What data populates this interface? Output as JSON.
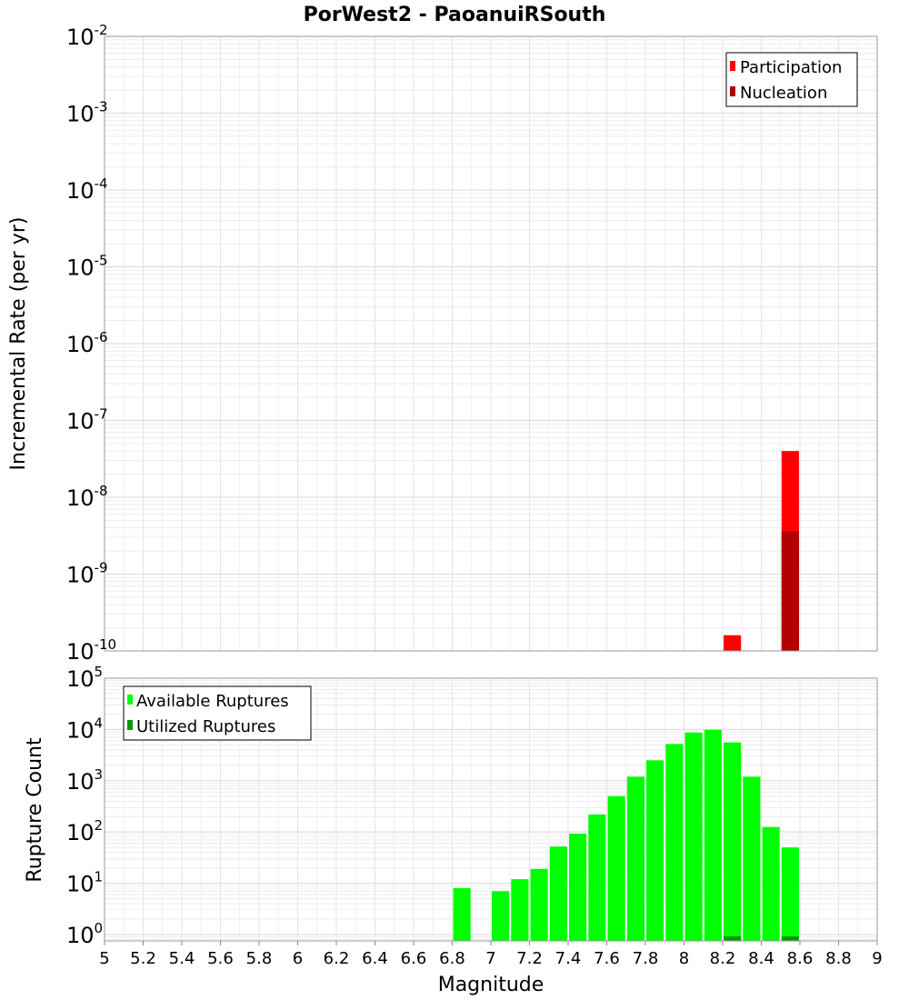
{
  "chart_data": [
    {
      "type": "bar",
      "title": "PorWest2 - PaoanuiRSouth",
      "xlabel": "Magnitude",
      "ylabel": "Incremental Rate (per yr)",
      "yscale": "log",
      "xlim": [
        5,
        9
      ],
      "ylim": [
        1e-10,
        0.01
      ],
      "grid": true,
      "legend_position": "top-right",
      "series": [
        {
          "name": "Participation",
          "color": "#ff0000",
          "points": [
            {
              "x": 8.25,
              "y": 1.6e-10
            },
            {
              "x": 8.55,
              "y": 4e-08
            }
          ]
        },
        {
          "name": "Nucleation",
          "color": "#b30000",
          "points": [
            {
              "x": 8.55,
              "y": 3.6e-09
            }
          ]
        }
      ]
    },
    {
      "type": "bar",
      "xlabel": "Magnitude",
      "ylabel": "Rupture Count",
      "yscale": "log",
      "xlim": [
        5,
        9
      ],
      "ylim": [
        0.75,
        100000.0
      ],
      "grid": true,
      "legend_position": "top-left",
      "series": [
        {
          "name": "Available Ruptures",
          "color": "#00ff00",
          "points": [
            {
              "x": 6.85,
              "y": 8
            },
            {
              "x": 7.05,
              "y": 7
            },
            {
              "x": 7.15,
              "y": 12
            },
            {
              "x": 7.25,
              "y": 19
            },
            {
              "x": 7.35,
              "y": 52
            },
            {
              "x": 7.45,
              "y": 93
            },
            {
              "x": 7.55,
              "y": 220
            },
            {
              "x": 7.65,
              "y": 500
            },
            {
              "x": 7.75,
              "y": 1200
            },
            {
              "x": 7.85,
              "y": 2500
            },
            {
              "x": 7.95,
              "y": 5200
            },
            {
              "x": 8.05,
              "y": 8700
            },
            {
              "x": 8.15,
              "y": 9800
            },
            {
              "x": 8.25,
              "y": 5600
            },
            {
              "x": 8.35,
              "y": 1200
            },
            {
              "x": 8.45,
              "y": 125
            },
            {
              "x": 8.55,
              "y": 50
            }
          ]
        },
        {
          "name": "Utilized Ruptures",
          "color": "#009900",
          "points": [
            {
              "x": 8.25,
              "y": 1
            },
            {
              "x": 8.55,
              "y": 1
            }
          ]
        }
      ]
    }
  ],
  "x_ticks": [
    "5",
    "5.2",
    "5.4",
    "5.6",
    "5.8",
    "6",
    "6.2",
    "6.4",
    "6.6",
    "6.8",
    "7",
    "7.2",
    "7.4",
    "7.6",
    "7.8",
    "8",
    "8.2",
    "8.4",
    "8.6",
    "8.8",
    "9"
  ],
  "top_y_ticks": [
    {
      "base": "10",
      "exp": "-2"
    },
    {
      "base": "10",
      "exp": "-3"
    },
    {
      "base": "10",
      "exp": "-4"
    },
    {
      "base": "10",
      "exp": "-5"
    },
    {
      "base": "10",
      "exp": "-6"
    },
    {
      "base": "10",
      "exp": "-7"
    },
    {
      "base": "10",
      "exp": "-8"
    },
    {
      "base": "10",
      "exp": "-9"
    },
    {
      "base": "10",
      "exp": "-10"
    }
  ],
  "bottom_y_ticks": [
    {
      "base": "10",
      "exp": "5"
    },
    {
      "base": "10",
      "exp": "4"
    },
    {
      "base": "10",
      "exp": "3"
    },
    {
      "base": "10",
      "exp": "2"
    },
    {
      "base": "10",
      "exp": "1"
    },
    {
      "base": "10",
      "exp": "0"
    }
  ]
}
